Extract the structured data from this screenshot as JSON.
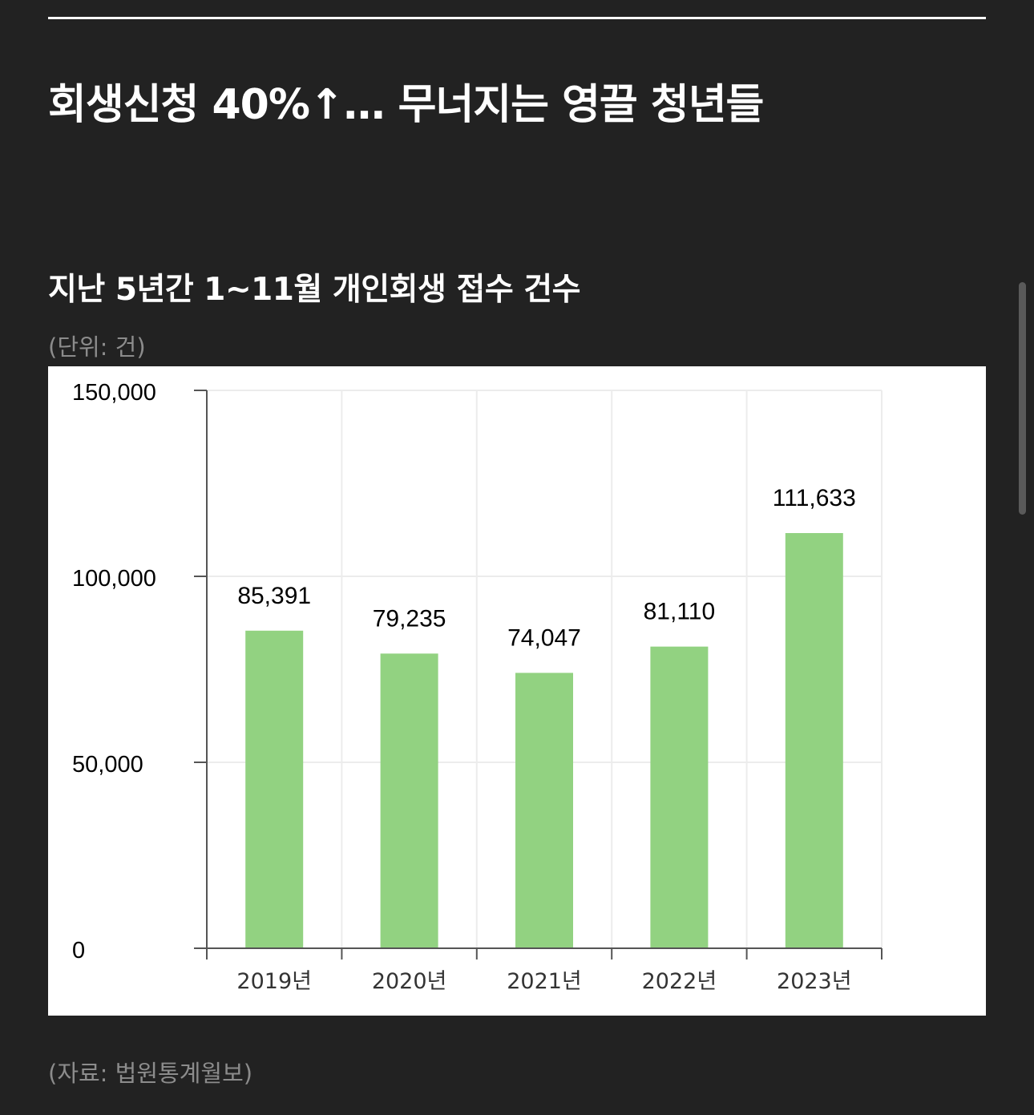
{
  "headline": "회생신청 40%↑… 무너지는 영끌 청년들",
  "chart_title": "지난 5년간 1~11월 개인회생 접수 건수",
  "unit_note": "(단위: 건)",
  "source_note": "(자료: 법원통계월보)",
  "colors": {
    "page_background": "#222222",
    "bar": "#92d281",
    "grid": "#ececec",
    "axis": "#555555"
  },
  "chart_data": {
    "type": "bar",
    "title": "지난 5년간 1~11월 개인회생 접수 건수",
    "unit": "(단위: 건)",
    "categories": [
      "2019년",
      "2020년",
      "2021년",
      "2022년",
      "2023년"
    ],
    "values": [
      85391,
      79235,
      74047,
      81110,
      111633
    ],
    "data_labels": [
      "85,391",
      "79,235",
      "74,047",
      "81,110",
      "111,633"
    ],
    "y_ticks": [
      0,
      50000,
      100000,
      150000
    ],
    "y_tick_labels": [
      "0",
      "50,000",
      "100,000",
      "150,000"
    ],
    "ylim": [
      0,
      150000
    ],
    "xlabel": "",
    "ylabel": "",
    "grid": true,
    "legend": "none",
    "source": "(자료: 법원통계월보)"
  }
}
